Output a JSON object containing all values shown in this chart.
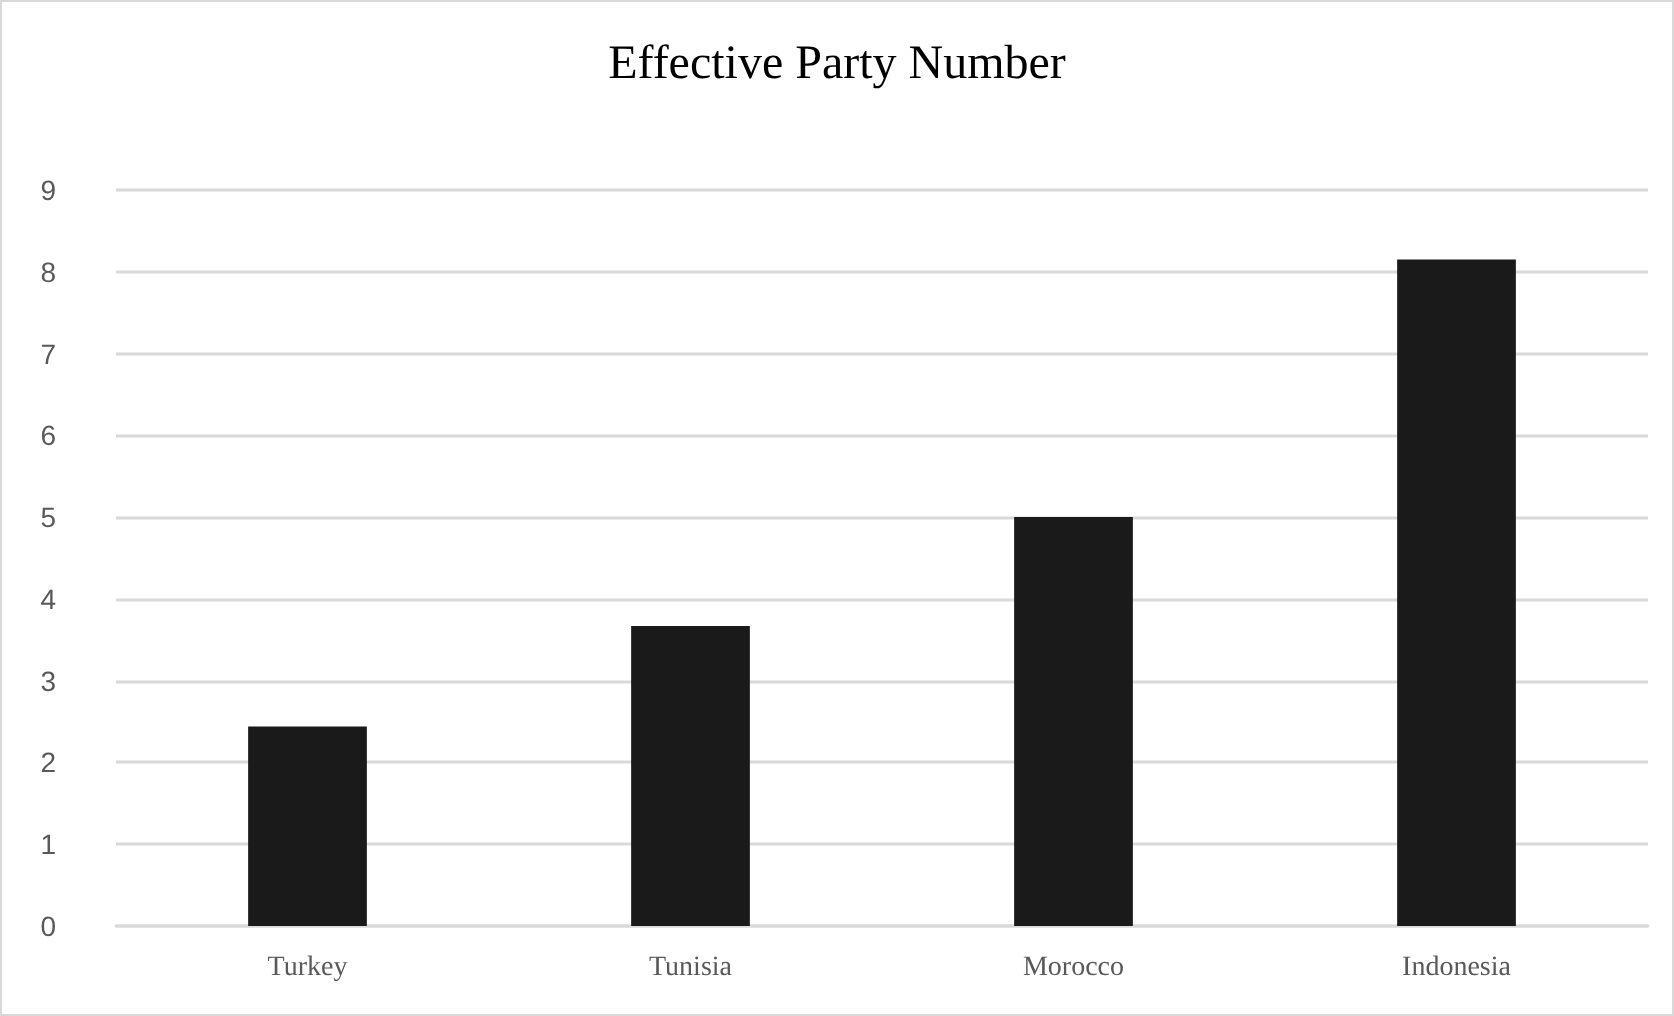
{
  "chart_data": {
    "type": "bar",
    "title": "Effective Party Number",
    "categories": [
      "Turkey",
      "Tunisia",
      "Morocco",
      "Indonesia"
    ],
    "values": [
      2.44,
      3.67,
      5.0,
      8.15
    ],
    "color": "#1a1a1a",
    "ylim": [
      0,
      9
    ],
    "yticks": [
      0,
      1,
      2,
      3,
      4,
      5,
      6,
      7,
      8,
      9
    ],
    "grid": "y"
  }
}
